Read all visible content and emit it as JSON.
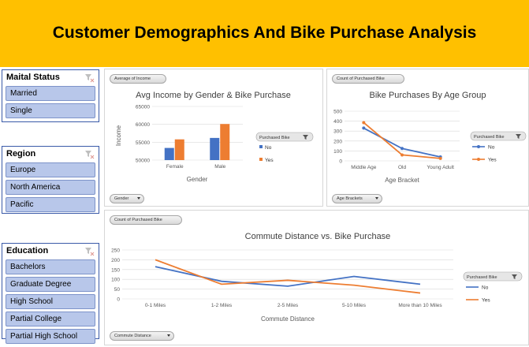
{
  "banner": {
    "title": "Customer Demographics And Bike Purchase Analysis"
  },
  "slicers": [
    {
      "title": "Maital Status",
      "items": [
        "Married",
        "Single"
      ]
    },
    {
      "title": "Region",
      "items": [
        "Europe",
        "North America",
        "Pacific"
      ]
    },
    {
      "title": "Education",
      "items": [
        "Bachelors",
        "Graduate Degree",
        "High School",
        "Partial College",
        "Partial High School"
      ]
    }
  ],
  "colors": {
    "no": "#4472c4",
    "yes": "#ed7d31",
    "slicer_item": "#b8c7ea",
    "banner": "#ffc000"
  },
  "pivot_buttons": {
    "income_value": "Average of Income",
    "income_axis": "Gender",
    "age_value": "Count of Purchased Bike",
    "age_axis": "Age Brackets",
    "commute_value": "Count of Purchased Bike",
    "commute_axis": "Commute Distance"
  },
  "legend": {
    "title": "Purchased Bike",
    "no": "No",
    "yes": "Yes"
  },
  "chart_data": [
    {
      "type": "bar",
      "title": "Avg Income by Gender & Bike Purchase",
      "xlabel": "Gender",
      "ylabel": "Income",
      "categories": [
        "Female",
        "Male"
      ],
      "series": [
        {
          "name": "No",
          "values": [
            53400,
            56200
          ]
        },
        {
          "name": "Yes",
          "values": [
            55800,
            60100
          ]
        }
      ],
      "ylim": [
        50000,
        65000
      ],
      "yticks": [
        "50000",
        "55000",
        "60000",
        "65000"
      ],
      "legend": "right"
    },
    {
      "type": "line",
      "title": "Bike Purchases By Age Group",
      "xlabel": "Age Bracket",
      "ylabel": "",
      "categories": [
        "Middle Age",
        "Old",
        "Young Adult"
      ],
      "series": [
        {
          "name": "No",
          "values": [
            330,
            125,
            40
          ]
        },
        {
          "name": "Yes",
          "values": [
            385,
            60,
            25
          ]
        }
      ],
      "ylim": [
        0,
        500
      ],
      "yticks": [
        "0",
        "100",
        "200",
        "300",
        "400",
        "500"
      ],
      "legend": "right"
    },
    {
      "type": "line",
      "title": "Commute Distance vs. Bike Purchase",
      "xlabel": "Commute Distance",
      "ylabel": "",
      "categories": [
        "0-1 Miles",
        "1-2 Miles",
        "2-5 Miles",
        "5-10 Miles",
        "More than 10 Miles"
      ],
      "series": [
        {
          "name": "No",
          "values": [
            165,
            90,
            65,
            115,
            75
          ]
        },
        {
          "name": "Yes",
          "values": [
            200,
            75,
            95,
            70,
            30
          ]
        }
      ],
      "ylim": [
        0,
        250
      ],
      "yticks": [
        "0",
        "50",
        "100",
        "150",
        "200",
        "250"
      ],
      "legend": "right"
    }
  ]
}
